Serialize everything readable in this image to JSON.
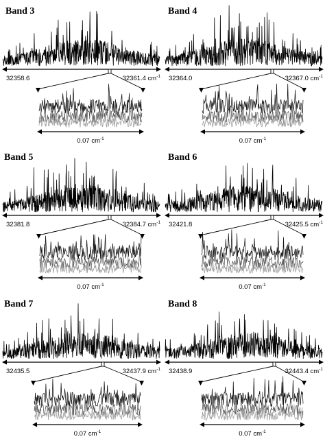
{
  "figure": {
    "panels": [
      {
        "title": "Band 3",
        "left_label": "32358.6",
        "right_label": "32361.4 cm",
        "right_sup": "-1",
        "zoom_label": "0.07 cm",
        "zoom_sup": "-1"
      },
      {
        "title": "Band 4",
        "left_label": "32364.0",
        "right_label": "32367.0 cm",
        "right_sup": "-1",
        "zoom_label": "0.07 cm",
        "zoom_sup": "-1"
      },
      {
        "title": "Band 5",
        "left_label": "32381.8",
        "right_label": "32384.7 cm",
        "right_sup": "-1",
        "zoom_label": "0.07 cm",
        "zoom_sup": "-1"
      },
      {
        "title": "Band 6",
        "left_label": "32421.8",
        "right_label": "32425.5 cm",
        "right_sup": "-1",
        "zoom_label": "0.07 cm",
        "zoom_sup": "-1"
      },
      {
        "title": "Band 7",
        "left_label": "32435.5",
        "right_label": "32437.9 cm",
        "right_sup": "-1",
        "zoom_label": "0.07 cm",
        "zoom_sup": "-1"
      },
      {
        "title": "Band 8",
        "left_label": "32438.9",
        "right_label": "32443.4 cm",
        "right_sup": "-1",
        "zoom_label": "0.07 cm",
        "zoom_sup": "-1"
      }
    ]
  },
  "chart_data": [
    {
      "type": "line",
      "title": "Band 3",
      "xlim": [
        32358.6,
        32361.4
      ],
      "x_unit": "cm-1",
      "zoom_width": 0.07,
      "zoom_unit": "cm-1",
      "zoom_traces": 3
    },
    {
      "type": "line",
      "title": "Band 4",
      "xlim": [
        32364.0,
        32367.0
      ],
      "x_unit": "cm-1",
      "zoom_width": 0.07,
      "zoom_unit": "cm-1",
      "zoom_traces": 3
    },
    {
      "type": "line",
      "title": "Band 5",
      "xlim": [
        32381.8,
        32384.7
      ],
      "x_unit": "cm-1",
      "zoom_width": 0.07,
      "zoom_unit": "cm-1",
      "zoom_traces": 3
    },
    {
      "type": "line",
      "title": "Band 6",
      "xlim": [
        32421.8,
        32425.5
      ],
      "x_unit": "cm-1",
      "zoom_width": 0.07,
      "zoom_unit": "cm-1",
      "zoom_traces": 3
    },
    {
      "type": "line",
      "title": "Band 7",
      "xlim": [
        32435.5,
        32437.9
      ],
      "x_unit": "cm-1",
      "zoom_width": 0.07,
      "zoom_unit": "cm-1",
      "zoom_traces": 3
    },
    {
      "type": "line",
      "title": "Band 8",
      "xlim": [
        32438.9,
        32443.4
      ],
      "x_unit": "cm-1",
      "zoom_width": 0.07,
      "zoom_unit": "cm-1",
      "zoom_traces": 3
    }
  ]
}
